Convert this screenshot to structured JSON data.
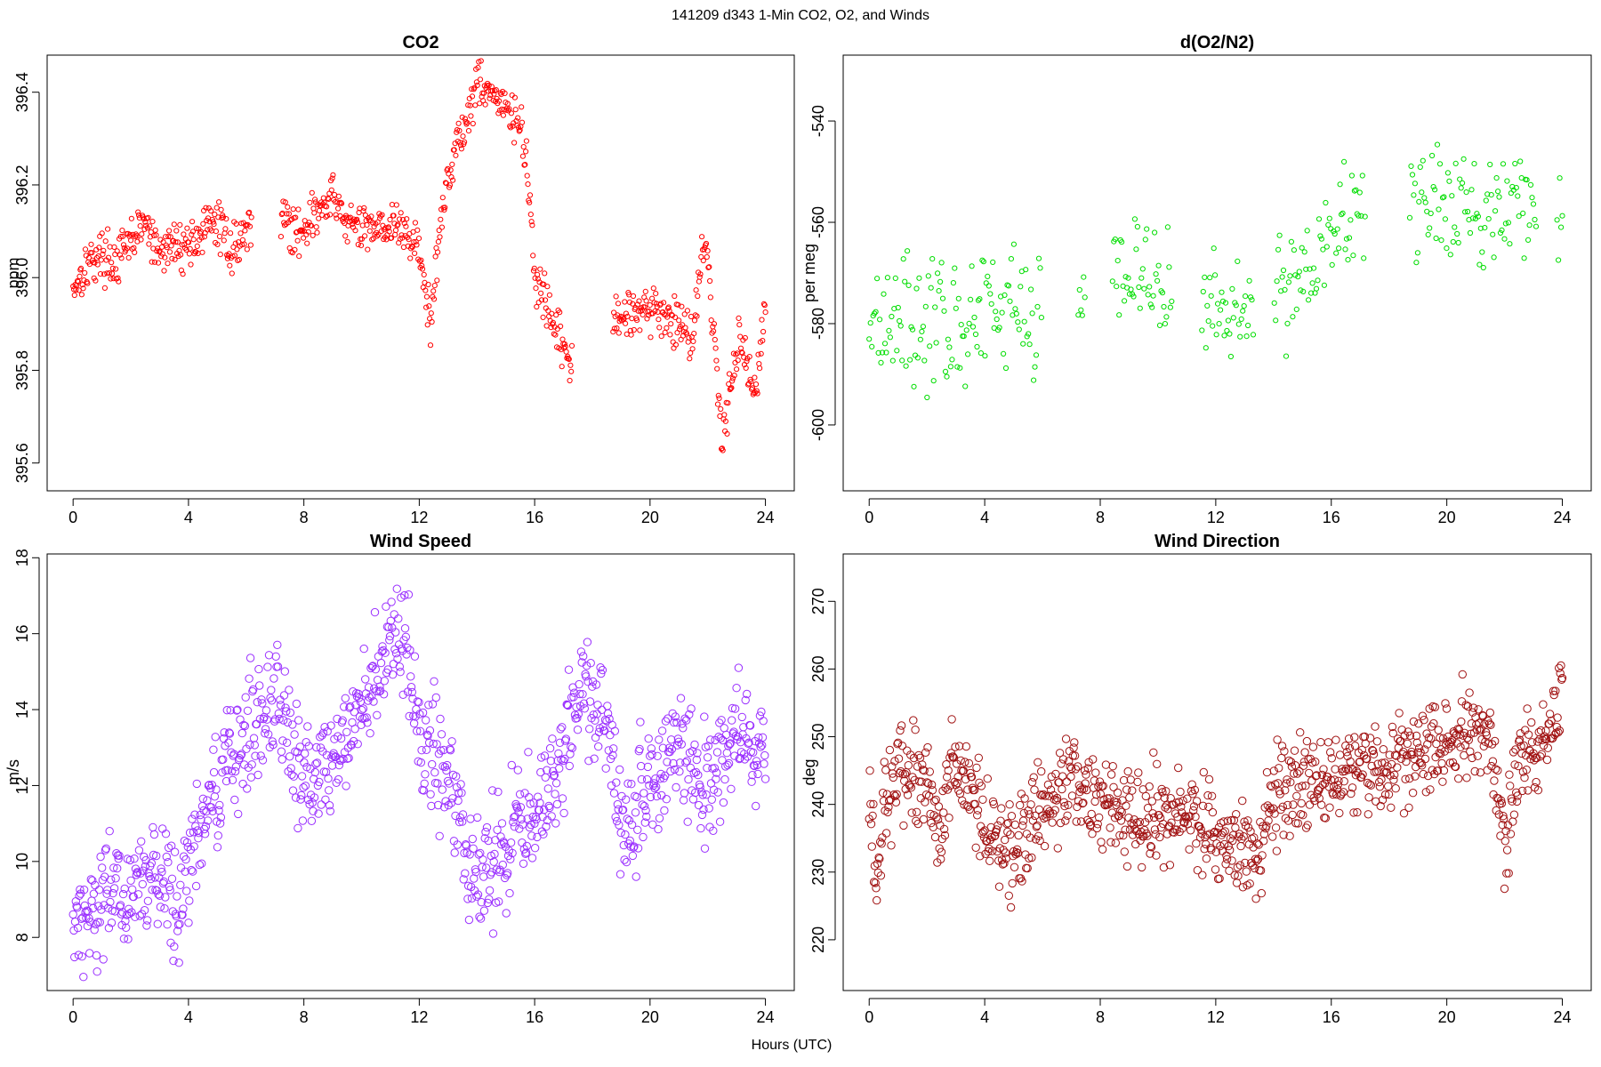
{
  "figure": {
    "title": "141209   d343   1-Min CO2, O2, and Winds",
    "xlabel": "Hours (UTC)"
  },
  "chart_data": [
    {
      "type": "scatter",
      "title": "CO2",
      "ylabel": "ppm",
      "xlabel": "Hours (UTC)",
      "xlim": [
        -0.9,
        25
      ],
      "ylim": [
        395.54,
        396.48
      ],
      "xticks": [
        0,
        4,
        8,
        12,
        16,
        20,
        24
      ],
      "yticks": [
        395.6,
        395.8,
        396.0,
        396.2,
        396.4
      ],
      "ytick_labels": [
        "395.6",
        "395.8",
        "396.0",
        "396.2",
        "396.4"
      ],
      "grid": false,
      "marker": "open-circle",
      "color": "#ff0000",
      "trend": [
        [
          0.0,
          395.98
        ],
        [
          0.5,
          396.03
        ],
        [
          1.0,
          396.05
        ],
        [
          1.5,
          396.03
        ],
        [
          2.0,
          396.08
        ],
        [
          2.5,
          396.12
        ],
        [
          2.9,
          396.05
        ],
        [
          3.4,
          396.07
        ],
        [
          4.0,
          396.07
        ],
        [
          4.5,
          396.1
        ],
        [
          5.0,
          396.12
        ],
        [
          5.5,
          396.06
        ],
        [
          6.0,
          396.1
        ],
        [
          7.3,
          396.15
        ],
        [
          7.6,
          396.09
        ],
        [
          8.5,
          396.14
        ],
        [
          9.0,
          396.17
        ],
        [
          9.5,
          396.12
        ],
        [
          10.0,
          396.1
        ],
        [
          10.5,
          396.12
        ],
        [
          11.0,
          396.11
        ],
        [
          11.5,
          396.1
        ],
        [
          12.0,
          396.06
        ],
        [
          12.4,
          395.89
        ],
        [
          12.7,
          396.1
        ],
        [
          13.0,
          396.22
        ],
        [
          13.3,
          396.3
        ],
        [
          13.6,
          396.32
        ],
        [
          14.0,
          396.43
        ],
        [
          14.5,
          396.4
        ],
        [
          15.0,
          396.36
        ],
        [
          15.5,
          396.33
        ],
        [
          15.8,
          396.2
        ],
        [
          16.0,
          396.0
        ],
        [
          16.3,
          395.95
        ],
        [
          16.6,
          395.9
        ],
        [
          17.0,
          395.85
        ],
        [
          17.2,
          395.82
        ],
        [
          18.8,
          395.9
        ],
        [
          19.5,
          395.94
        ],
        [
          20.0,
          395.93
        ],
        [
          20.5,
          395.92
        ],
        [
          21.0,
          395.9
        ],
        [
          21.5,
          395.88
        ],
        [
          21.8,
          396.07
        ],
        [
          22.0,
          396.04
        ],
        [
          22.3,
          395.8
        ],
        [
          22.5,
          395.65
        ],
        [
          22.8,
          395.78
        ],
        [
          23.1,
          395.88
        ],
        [
          23.4,
          395.8
        ],
        [
          23.6,
          395.75
        ],
        [
          24.0,
          395.93
        ]
      ],
      "gaps": [
        [
          6.2,
          7.2
        ],
        [
          17.3,
          18.7
        ]
      ],
      "spread": 0.025,
      "points_per_hour": 40
    },
    {
      "type": "scatter",
      "title": "d(O2/N2)",
      "ylabel": "per meg",
      "xlabel": "Hours (UTC)",
      "xlim": [
        -0.9,
        25
      ],
      "ylim": [
        -613,
        -527
      ],
      "xticks": [
        0,
        4,
        8,
        12,
        16,
        20,
        24
      ],
      "yticks": [
        -600,
        -580,
        -560,
        -540
      ],
      "ytick_labels": [
        "-600",
        "-580",
        "-560",
        "-540"
      ],
      "grid": false,
      "marker": "open-circle",
      "color": "#00dd00",
      "trend": [
        [
          0.0,
          -578
        ],
        [
          1.0,
          -578
        ],
        [
          2.0,
          -580
        ],
        [
          3.0,
          -580
        ],
        [
          3.6,
          -580
        ],
        [
          4.0,
          -579
        ],
        [
          5.0,
          -577
        ],
        [
          6.0,
          -575
        ],
        [
          7.2,
          -576
        ],
        [
          7.5,
          -574
        ],
        [
          8.5,
          -570
        ],
        [
          9.5,
          -570
        ],
        [
          10.3,
          -574
        ],
        [
          11.5,
          -577
        ],
        [
          12.5,
          -578
        ],
        [
          13.2,
          -576
        ],
        [
          14.0,
          -574
        ],
        [
          15.0,
          -570
        ],
        [
          15.5,
          -567
        ],
        [
          16.0,
          -562
        ],
        [
          16.5,
          -557
        ],
        [
          17.0,
          -558
        ],
        [
          18.8,
          -557
        ],
        [
          19.5,
          -557
        ],
        [
          20.5,
          -557
        ],
        [
          21.5,
          -557
        ],
        [
          22.5,
          -557
        ],
        [
          23.0,
          -558
        ],
        [
          24.0,
          -562
        ]
      ],
      "gaps": [
        [
          6.0,
          7.2
        ],
        [
          7.5,
          8.4
        ],
        [
          10.5,
          11.5
        ],
        [
          13.3,
          14.0
        ],
        [
          17.2,
          18.7
        ],
        [
          23.1,
          23.8
        ]
      ],
      "spread": 6,
      "points_per_hour": 22
    },
    {
      "type": "scatter",
      "title": "Wind Speed",
      "ylabel": "m/s",
      "xlabel": "Hours (UTC)",
      "xlim": [
        -0.9,
        25
      ],
      "ylim": [
        6.6,
        18.1
      ],
      "xticks": [
        0,
        4,
        8,
        12,
        16,
        20,
        24
      ],
      "yticks": [
        8,
        10,
        12,
        14,
        16,
        18
      ],
      "ytick_labels": [
        "8",
        "10",
        "12",
        "14",
        "16",
        "18"
      ],
      "grid": false,
      "marker": "open-circle",
      "color": "#9a2fff",
      "trend": [
        [
          0.0,
          8.4
        ],
        [
          1.0,
          9.0
        ],
        [
          2.0,
          9.2
        ],
        [
          3.0,
          9.5
        ],
        [
          3.7,
          8.5
        ],
        [
          4.0,
          10.3
        ],
        [
          5.0,
          11.8
        ],
        [
          6.0,
          13.5
        ],
        [
          7.0,
          14.5
        ],
        [
          7.8,
          12.5
        ],
        [
          8.5,
          12.5
        ],
        [
          9.5,
          13.0
        ],
        [
          10.5,
          15.0
        ],
        [
          11.5,
          16.0
        ],
        [
          12.0,
          13.2
        ],
        [
          12.5,
          12.8
        ],
        [
          13.0,
          12.2
        ],
        [
          13.5,
          11.0
        ],
        [
          14.0,
          9.5
        ],
        [
          14.5,
          10.0
        ],
        [
          15.0,
          10.2
        ],
        [
          15.5,
          11.0
        ],
        [
          16.0,
          11.0
        ],
        [
          16.5,
          12.0
        ],
        [
          17.0,
          13.0
        ],
        [
          17.5,
          14.5
        ],
        [
          18.0,
          14.2
        ],
        [
          18.5,
          13.5
        ],
        [
          19.0,
          11.0
        ],
        [
          19.5,
          11.5
        ],
        [
          20.0,
          12.0
        ],
        [
          20.5,
          12.8
        ],
        [
          21.0,
          13.0
        ],
        [
          21.5,
          12.5
        ],
        [
          22.0,
          12.0
        ],
        [
          22.5,
          12.5
        ],
        [
          23.0,
          13.5
        ],
        [
          23.5,
          13.0
        ],
        [
          24.0,
          13.0
        ]
      ],
      "gaps": [],
      "spread": 0.75,
      "points_per_hour": 42
    },
    {
      "type": "scatter",
      "title": "Wind Direction",
      "ylabel": "deg",
      "xlabel": "Hours (UTC)",
      "xlim": [
        -0.9,
        25
      ],
      "ylim": [
        212.5,
        277
      ],
      "xticks": [
        0,
        4,
        8,
        12,
        16,
        20,
        24
      ],
      "yticks": [
        220,
        230,
        240,
        250,
        260,
        270
      ],
      "ytick_labels": [
        "220",
        "230",
        "240",
        "250",
        "260",
        "270"
      ],
      "grid": false,
      "marker": "open-circle",
      "color": "#a01010",
      "trend": [
        [
          0.0,
          240
        ],
        [
          0.3,
          228
        ],
        [
          0.5,
          240
        ],
        [
          1.0,
          244
        ],
        [
          2.0,
          243
        ],
        [
          2.5,
          238
        ],
        [
          3.0,
          246
        ],
        [
          3.5,
          244
        ],
        [
          4.0,
          237
        ],
        [
          5.0,
          233
        ],
        [
          6.0,
          240
        ],
        [
          7.0,
          244
        ],
        [
          8.0,
          240
        ],
        [
          9.0,
          239
        ],
        [
          10.0,
          238
        ],
        [
          11.0,
          238
        ],
        [
          12.0,
          236
        ],
        [
          13.0,
          234
        ],
        [
          13.5,
          232
        ],
        [
          14.0,
          241
        ],
        [
          15.0,
          244
        ],
        [
          16.0,
          244
        ],
        [
          17.0,
          246
        ],
        [
          18.0,
          245
        ],
        [
          19.0,
          247
        ],
        [
          20.0,
          250
        ],
        [
          21.0,
          252
        ],
        [
          21.5,
          250
        ],
        [
          22.0,
          233
        ],
        [
          22.5,
          247
        ],
        [
          23.0,
          248
        ],
        [
          23.5,
          250
        ],
        [
          24.0,
          258
        ]
      ],
      "gaps": [],
      "spread": 3.5,
      "points_per_hour": 42
    }
  ]
}
